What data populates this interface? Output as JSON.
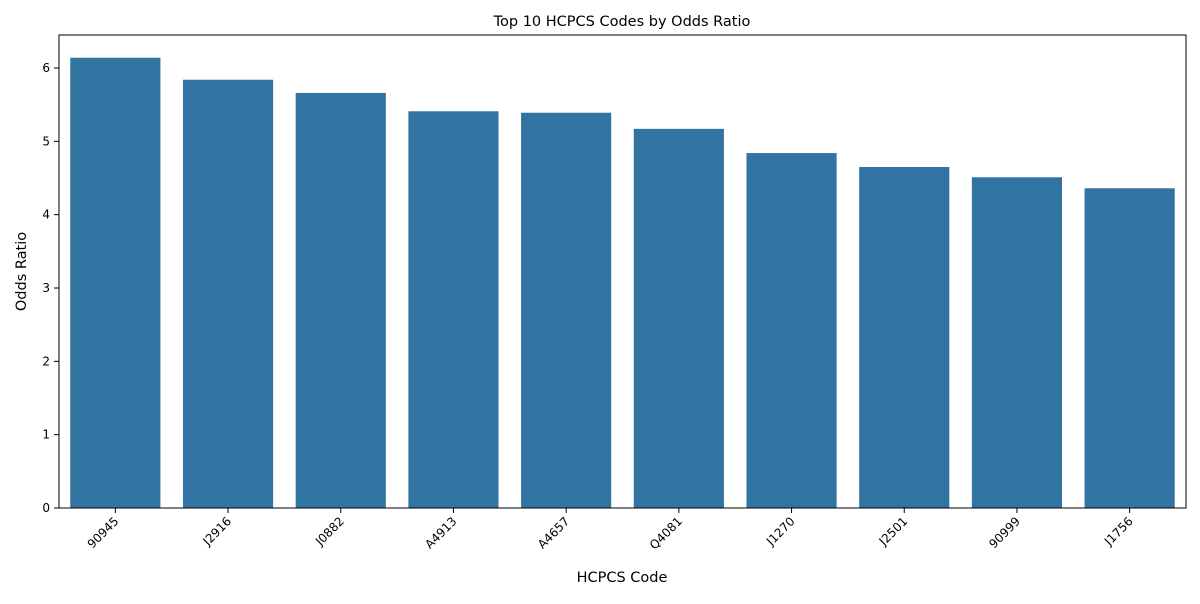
{
  "chart_data": {
    "type": "bar",
    "title": "Top 10 HCPCS Codes by Odds Ratio",
    "xlabel": "HCPCS Code",
    "ylabel": "Odds Ratio",
    "categories": [
      "90945",
      "J2916",
      "J0882",
      "A4913",
      "A4657",
      "Q4081",
      "J1270",
      "J2501",
      "90999",
      "J1756"
    ],
    "values": [
      6.14,
      5.84,
      5.66,
      5.41,
      5.39,
      5.17,
      4.84,
      4.65,
      4.51,
      4.36
    ],
    "ylim": [
      0,
      6.45
    ],
    "yticks": [
      0,
      1,
      2,
      3,
      4,
      5,
      6
    ],
    "grid": false,
    "bar_color": "#3274a1",
    "tick_label_rotation": "45 degrees"
  }
}
